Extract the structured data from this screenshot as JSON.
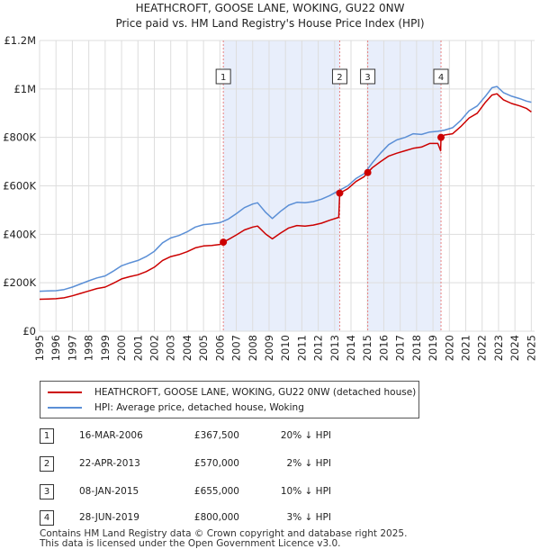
{
  "chart_data": {
    "type": "line",
    "title": "HEATHCROFT, GOOSE LANE, WOKING, GU22 0NW",
    "subtitle": "Price paid vs. HM Land Registry's House Price Index (HPI)",
    "xlabel": "",
    "ylabel": "",
    "xlim": [
      1995,
      2025.2
    ],
    "ylim": [
      0,
      1200000
    ],
    "x_ticks": [
      "1995",
      "1996",
      "1997",
      "1998",
      "1999",
      "2000",
      "2001",
      "2002",
      "2003",
      "2004",
      "2005",
      "2006",
      "2007",
      "2008",
      "2009",
      "2010",
      "2011",
      "2012",
      "2013",
      "2014",
      "2015",
      "2016",
      "2017",
      "2018",
      "2019",
      "2020",
      "2021",
      "2022",
      "2023",
      "2024",
      "2025"
    ],
    "y_ticks": [
      {
        "value": 0,
        "label": "£0"
      },
      {
        "value": 200000,
        "label": "£200K"
      },
      {
        "value": 400000,
        "label": "£400K"
      },
      {
        "value": 600000,
        "label": "£600K"
      },
      {
        "value": 800000,
        "label": "£800K"
      },
      {
        "value": 1000000,
        "label": "£1M"
      },
      {
        "value": 1200000,
        "label": "£1.2M"
      }
    ],
    "grid": true,
    "colors": {
      "property": "#cc0000",
      "hpi": "#5b8fd6",
      "shade": "#e8eefb",
      "marker_line": "#e88080",
      "grid": "#dddddd"
    },
    "shaded_ranges": [
      [
        2006.21,
        2013.31
      ],
      [
        2015.02,
        2019.49
      ]
    ],
    "sales": [
      {
        "label": "1",
        "x": 2006.21,
        "y": 367500
      },
      {
        "label": "2",
        "x": 2013.31,
        "y": 570000
      },
      {
        "label": "3",
        "x": 2015.02,
        "y": 655000
      },
      {
        "label": "4",
        "x": 2019.49,
        "y": 800000
      }
    ],
    "series": [
      {
        "name": "HPI: Average price, detached house, Woking",
        "points": [
          [
            1995.0,
            165000
          ],
          [
            1995.5,
            166000
          ],
          [
            1996.0,
            167000
          ],
          [
            1996.5,
            172000
          ],
          [
            1997.0,
            182000
          ],
          [
            1997.5,
            195000
          ],
          [
            1998.0,
            208000
          ],
          [
            1998.5,
            220000
          ],
          [
            1999.0,
            228000
          ],
          [
            1999.5,
            248000
          ],
          [
            2000.0,
            270000
          ],
          [
            2000.5,
            282000
          ],
          [
            2001.0,
            292000
          ],
          [
            2001.5,
            308000
          ],
          [
            2002.0,
            330000
          ],
          [
            2002.5,
            365000
          ],
          [
            2003.0,
            385000
          ],
          [
            2003.5,
            395000
          ],
          [
            2004.0,
            410000
          ],
          [
            2004.5,
            430000
          ],
          [
            2005.0,
            440000
          ],
          [
            2005.5,
            443000
          ],
          [
            2006.0,
            448000
          ],
          [
            2006.5,
            462000
          ],
          [
            2007.0,
            485000
          ],
          [
            2007.5,
            510000
          ],
          [
            2008.0,
            525000
          ],
          [
            2008.3,
            530000
          ],
          [
            2008.8,
            490000
          ],
          [
            2009.2,
            465000
          ],
          [
            2009.7,
            495000
          ],
          [
            2010.2,
            520000
          ],
          [
            2010.7,
            532000
          ],
          [
            2011.2,
            530000
          ],
          [
            2011.7,
            535000
          ],
          [
            2012.2,
            545000
          ],
          [
            2012.7,
            560000
          ],
          [
            2013.3,
            582000
          ],
          [
            2013.8,
            600000
          ],
          [
            2014.3,
            630000
          ],
          [
            2014.8,
            650000
          ],
          [
            2015.3,
            695000
          ],
          [
            2015.8,
            735000
          ],
          [
            2016.3,
            770000
          ],
          [
            2016.8,
            790000
          ],
          [
            2017.3,
            800000
          ],
          [
            2017.8,
            815000
          ],
          [
            2018.3,
            812000
          ],
          [
            2018.8,
            822000
          ],
          [
            2019.3,
            825000
          ],
          [
            2019.7,
            830000
          ],
          [
            2020.2,
            840000
          ],
          [
            2020.7,
            870000
          ],
          [
            2021.2,
            910000
          ],
          [
            2021.7,
            930000
          ],
          [
            2022.2,
            970000
          ],
          [
            2022.6,
            1005000
          ],
          [
            2022.9,
            1010000
          ],
          [
            2023.3,
            985000
          ],
          [
            2023.8,
            970000
          ],
          [
            2024.3,
            960000
          ],
          [
            2024.7,
            950000
          ],
          [
            2025.0,
            945000
          ]
        ]
      },
      {
        "name": "HEATHCROFT, GOOSE LANE, WOKING, GU22 0NW (detached house)",
        "points": [
          [
            1995.0,
            132000
          ],
          [
            1995.5,
            133000
          ],
          [
            1996.0,
            134000
          ],
          [
            1996.5,
            138000
          ],
          [
            1997.0,
            146000
          ],
          [
            1997.5,
            156000
          ],
          [
            1998.0,
            166000
          ],
          [
            1998.5,
            176000
          ],
          [
            1999.0,
            182000
          ],
          [
            1999.5,
            198000
          ],
          [
            2000.0,
            216000
          ],
          [
            2000.5,
            225000
          ],
          [
            2001.0,
            233000
          ],
          [
            2001.5,
            246000
          ],
          [
            2002.0,
            264000
          ],
          [
            2002.5,
            292000
          ],
          [
            2003.0,
            308000
          ],
          [
            2003.5,
            316000
          ],
          [
            2004.0,
            328000
          ],
          [
            2004.5,
            344000
          ],
          [
            2005.0,
            352000
          ],
          [
            2005.5,
            354000
          ],
          [
            2006.0,
            358000
          ],
          [
            2006.21,
            367500
          ],
          [
            2006.5,
            378000
          ],
          [
            2007.0,
            397000
          ],
          [
            2007.5,
            418000
          ],
          [
            2008.0,
            430000
          ],
          [
            2008.3,
            434000
          ],
          [
            2008.8,
            401000
          ],
          [
            2009.2,
            381000
          ],
          [
            2009.7,
            405000
          ],
          [
            2010.2,
            426000
          ],
          [
            2010.7,
            436000
          ],
          [
            2011.2,
            434000
          ],
          [
            2011.7,
            438000
          ],
          [
            2012.2,
            446000
          ],
          [
            2012.7,
            458000
          ],
          [
            2013.25,
            470000
          ],
          [
            2013.31,
            570000
          ],
          [
            2013.8,
            588000
          ],
          [
            2014.3,
            618000
          ],
          [
            2014.8,
            638000
          ],
          [
            2015.02,
            655000
          ],
          [
            2015.3,
            675000
          ],
          [
            2015.8,
            700000
          ],
          [
            2016.3,
            723000
          ],
          [
            2016.8,
            735000
          ],
          [
            2017.3,
            745000
          ],
          [
            2017.8,
            755000
          ],
          [
            2018.3,
            760000
          ],
          [
            2018.8,
            775000
          ],
          [
            2019.3,
            775000
          ],
          [
            2019.47,
            745000
          ],
          [
            2019.49,
            800000
          ],
          [
            2019.7,
            810000
          ],
          [
            2020.2,
            815000
          ],
          [
            2020.7,
            845000
          ],
          [
            2021.2,
            880000
          ],
          [
            2021.7,
            900000
          ],
          [
            2022.2,
            945000
          ],
          [
            2022.6,
            975000
          ],
          [
            2022.9,
            980000
          ],
          [
            2023.3,
            955000
          ],
          [
            2023.8,
            940000
          ],
          [
            2024.3,
            930000
          ],
          [
            2024.7,
            920000
          ],
          [
            2025.0,
            905000
          ]
        ]
      }
    ]
  },
  "legend": {
    "property_label": "HEATHCROFT, GOOSE LANE, WOKING, GU22 0NW (detached house)",
    "hpi_label": "HPI: Average price, detached house, Woking"
  },
  "transactions": [
    {
      "num": "1",
      "date": "16-MAR-2006",
      "price": "£367,500",
      "hpi": "20% ↓ HPI"
    },
    {
      "num": "2",
      "date": "22-APR-2013",
      "price": "£570,000",
      "hpi": "2% ↓ HPI"
    },
    {
      "num": "3",
      "date": "08-JAN-2015",
      "price": "£655,000",
      "hpi": "10% ↓ HPI"
    },
    {
      "num": "4",
      "date": "28-JUN-2019",
      "price": "£800,000",
      "hpi": "3% ↓ HPI"
    }
  ],
  "footer": {
    "line1": "Contains HM Land Registry data © Crown copyright and database right 2025.",
    "line2": "This data is licensed under the Open Government Licence v3.0."
  }
}
